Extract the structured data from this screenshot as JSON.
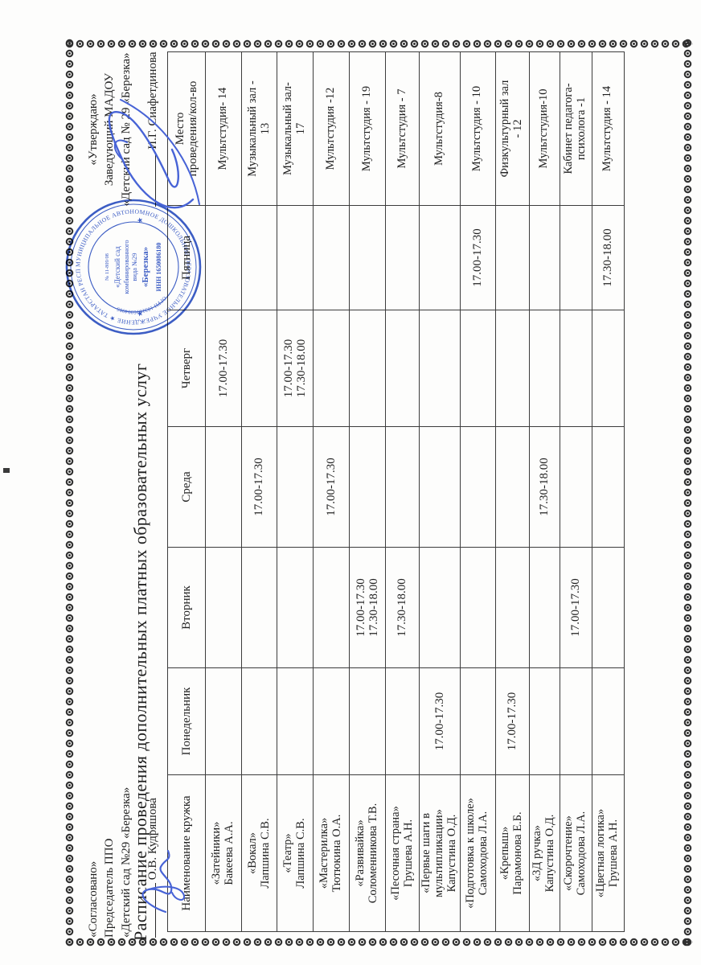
{
  "document": {
    "title": "Расписание проведения дополнительных платных образовательных услуг",
    "agreed_block": {
      "line1": "«Согласовано»",
      "line2": "Председатель ППО",
      "line3": "«Детский сад №29 «Березка»",
      "signer": "О.В. Кудряшова"
    },
    "approved_block": {
      "line1": "«Утверждаю»",
      "line2": "Заведующий МАДОУ",
      "line3": "«Детский сад № 29 «Березка»",
      "signer": "И.Г. Сиафетдинова"
    }
  },
  "table": {
    "headers": {
      "name": "Наименование кружка",
      "monday": "Понедельник",
      "tuesday": "Вторник",
      "wednesday": "Среда",
      "thursday": "Четверг",
      "friday": "Пятница",
      "place_line1": "Место",
      "place_line2": "проведения/кол-во"
    },
    "rows": [
      {
        "name": [
          "«Затейники»",
          "Бакеева А.А."
        ],
        "thursday": [
          "17.00-17.30"
        ],
        "place": [
          "Мультстудия- 14"
        ]
      },
      {
        "name": [
          "«Вокал»",
          "Лапшина С.В."
        ],
        "wednesday": [
          "17.00-17.30"
        ],
        "place": [
          "Музыкальный зал -",
          "13"
        ]
      },
      {
        "name": [
          "«Театр»",
          "Лапшина С.В."
        ],
        "thursday": [
          "17.00-17.30",
          "17.30-18.00"
        ],
        "place": [
          "Музыкальный зал-",
          "17"
        ]
      },
      {
        "name": [
          "«Мастерилка»",
          "Тютюкина О.А."
        ],
        "wednesday": [
          "17.00-17.30"
        ],
        "place": [
          "Мультстудия -12"
        ]
      },
      {
        "name": [
          "«Развивайка»",
          "Соломенникова Т.В."
        ],
        "tuesday": [
          "17.00-17.30",
          "17.30-18.00"
        ],
        "place": [
          "Мультстудия - 19"
        ]
      },
      {
        "name": [
          "«Песочная страна»",
          "Грушева А.Н."
        ],
        "tuesday": [
          "17.30-18.00"
        ],
        "place": [
          "Мультстудия - 7"
        ]
      },
      {
        "name": [
          "«Первые шаги в",
          "мультипликации»",
          "Капустина О.Д."
        ],
        "monday": [
          "17.00-17.30"
        ],
        "place": [
          "Мультстудия-8"
        ]
      },
      {
        "name": [
          "«Подготовка к школе»",
          "Самоходова Л.А."
        ],
        "friday": [
          "17.00-17.30"
        ],
        "place": [
          "Мультстудия - 10"
        ]
      },
      {
        "name": [
          "«Крепыш»",
          "Парамонова Е.Б."
        ],
        "monday": [
          "17.00-17.30"
        ],
        "place": [
          "Физкультурный зал",
          "- 12"
        ]
      },
      {
        "name": [
          "«3Д ручка»",
          "Капустина О.Д."
        ],
        "wednesday": [
          "17.30-18.00"
        ],
        "place": [
          "Мультстудия-10"
        ]
      },
      {
        "name": [
          "«Скорочтение»",
          "Самоходова Л.А."
        ],
        "tuesday": [
          "17.00-17.30"
        ],
        "place": [
          "Кабинет педагога-",
          "психолога -1"
        ]
      },
      {
        "name": [
          "«Цветная логика»",
          "Грушева А.Н."
        ],
        "friday": [
          "17.30-18.00"
        ],
        "place": [
          "Мультстудия - 14"
        ]
      }
    ]
  },
  "stamp": {
    "ring_text": "МУНИЦИПАЛЬНОЕ АВТОНОМНОЕ ДОШКОЛЬНОЕ ОБРАЗОВАТЕЛЬНОЕ УЧРЕЖДЕНИЕ ★ ТАТАРСТАН РЕСПУБЛИКАСЫ ★",
    "cert": "№ 11-809/08",
    "center_line1": "«Детский сад",
    "center_line2": "комбинированного",
    "center_line3": "вида №29",
    "center_line4": "«Березка»",
    "inn": "ИНН 1650086180",
    "ogrn": "ОГРН 1031616004005"
  },
  "colors": {
    "ink": "#1f1f1f",
    "stamp_blue": "#2d50c0",
    "signature_blue": "#4763d6",
    "border_dark": "#2e2e2e",
    "paper": "#fdfdfc"
  }
}
